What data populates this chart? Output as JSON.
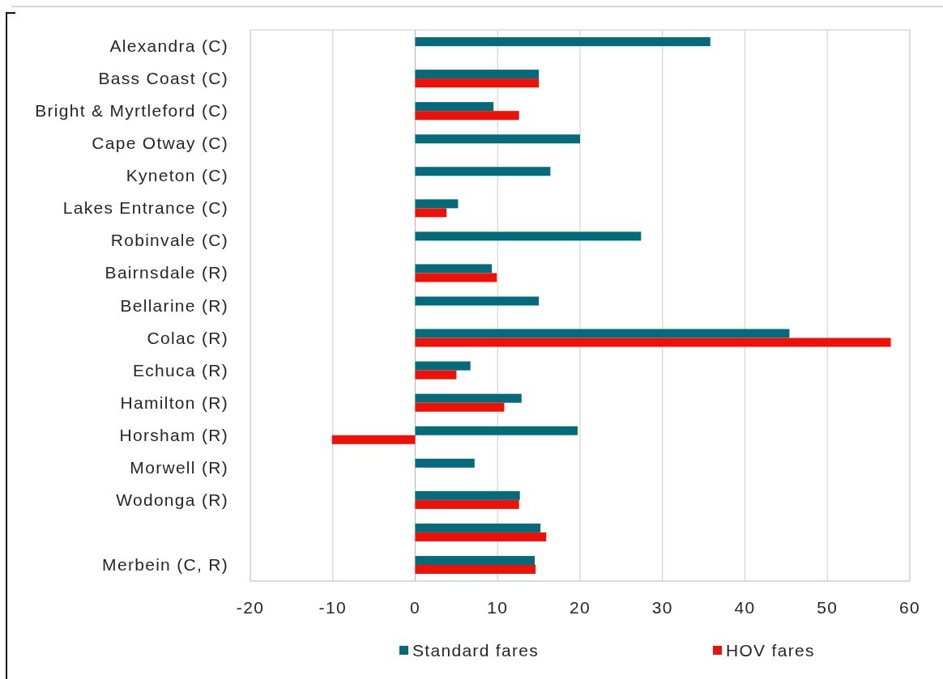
{
  "chart_data": {
    "type": "bar",
    "orientation": "horizontal",
    "categories": [
      "Alexandra (C)",
      "Bass Coast (C)",
      "Bright & Myrtleford (C)",
      "Cape Otway (C)",
      "Kyneton (C)",
      "Lakes Entrance (C)",
      "Robinvale (C)",
      "Bairnsdale (R)",
      "Bellarine (R)",
      "Colac (R)",
      "Echuca (R)",
      "Hamilton (R)",
      "Horsham (R)",
      "Morwell (R)",
      "Wodonga (R)",
      null,
      "Merbein (C, R)"
    ],
    "series": [
      {
        "name": "Standard fares",
        "color": "#036b7a",
        "values": [
          35.8,
          15.0,
          9.5,
          20.0,
          16.4,
          5.2,
          27.4,
          9.3,
          15.0,
          45.4,
          6.7,
          12.9,
          19.7,
          7.2,
          12.7,
          15.2,
          14.5
        ]
      },
      {
        "name": "HOV fares",
        "color": "#ee1108",
        "values": [
          null,
          15.0,
          12.6,
          null,
          null,
          3.8,
          null,
          9.9,
          null,
          57.7,
          5.0,
          10.8,
          -10.1,
          null,
          12.6,
          15.9,
          14.6
        ]
      }
    ],
    "xlim": [
      -20,
      60
    ],
    "xticks": [
      -20,
      -10,
      0,
      10,
      20,
      30,
      40,
      50,
      60
    ],
    "grid": "x",
    "legend": "bottom"
  }
}
